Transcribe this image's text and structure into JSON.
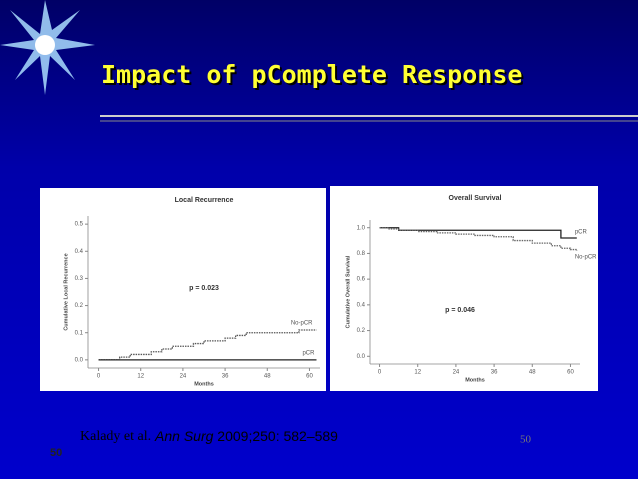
{
  "slide": {
    "title": "Impact of pComplete Response",
    "citation": {
      "authors": "Kalady et al.",
      "journal": "Ann Surg",
      "details": "2009;250: 582–589"
    },
    "page_number_left": "50",
    "page_number_right": "50"
  },
  "chart_data": [
    {
      "type": "line",
      "title": "Local Recurrence",
      "x_label": "Months",
      "y_label": "Cumulative Local Recurrence",
      "annotation": "p = 0.023",
      "x": [
        0,
        3,
        6,
        9,
        12,
        15,
        18,
        21,
        24,
        27,
        30,
        33,
        36,
        39,
        42,
        45,
        48,
        51,
        54,
        57,
        60,
        62
      ],
      "series": [
        {
          "name": "No-pCR",
          "color": "#555555",
          "values": [
            0,
            0,
            0.01,
            0.02,
            0.02,
            0.03,
            0.04,
            0.05,
            0.05,
            0.06,
            0.07,
            0.07,
            0.08,
            0.09,
            0.1,
            0.1,
            0.1,
            0.1,
            0.1,
            0.11,
            0.11,
            0.11
          ]
        },
        {
          "name": "pCR",
          "color": "#222222",
          "values": [
            0,
            0,
            0,
            0,
            0,
            0,
            0,
            0,
            0,
            0,
            0,
            0,
            0,
            0,
            0,
            0,
            0,
            0,
            0,
            0,
            0,
            0
          ]
        }
      ],
      "xlim": [
        -3,
        63
      ],
      "xticks": [
        0,
        12,
        24,
        36,
        48,
        60
      ],
      "ylim": [
        -0.03,
        0.53
      ],
      "yticks": [
        {
          "value": 0,
          "label": "0.0"
        },
        {
          "value": 0.1,
          "label": "0.1"
        },
        {
          "value": 0.2,
          "label": "0.2"
        },
        {
          "value": 0.3,
          "label": "0.3"
        },
        {
          "value": 0.4,
          "label": "0.4"
        },
        {
          "value": 0.5,
          "label": "0.5"
        }
      ]
    },
    {
      "type": "line",
      "title": "Overall Survival",
      "x_label": "Months",
      "y_label": "Cumulative Overall Survival",
      "annotation": "p = 0.046",
      "x": [
        0,
        3,
        6,
        12,
        18,
        24,
        30,
        36,
        42,
        48,
        54,
        57,
        60,
        62
      ],
      "series": [
        {
          "name": "pCR",
          "color": "#222222",
          "values": [
            1.0,
            1.0,
            0.98,
            0.98,
            0.98,
            0.98,
            0.98,
            0.98,
            0.98,
            0.98,
            0.98,
            0.92,
            0.92,
            0.92
          ]
        },
        {
          "name": "No-pCR",
          "color": "#666666",
          "values": [
            1.0,
            0.99,
            0.98,
            0.97,
            0.96,
            0.95,
            0.94,
            0.93,
            0.9,
            0.88,
            0.86,
            0.84,
            0.83,
            0.82
          ]
        }
      ],
      "xlim": [
        -3,
        63
      ],
      "xticks": [
        0,
        12,
        24,
        36,
        48,
        60
      ],
      "ylim": [
        -0.06,
        1.06
      ],
      "yticks": [
        {
          "value": 0,
          "label": "0.0"
        },
        {
          "value": 0.2,
          "label": "0.2"
        },
        {
          "value": 0.4,
          "label": "0.4"
        },
        {
          "value": 0.6,
          "label": "0.6"
        },
        {
          "value": 0.8,
          "label": "0.8"
        },
        {
          "value": 1.0,
          "label": "1.0"
        }
      ]
    }
  ]
}
